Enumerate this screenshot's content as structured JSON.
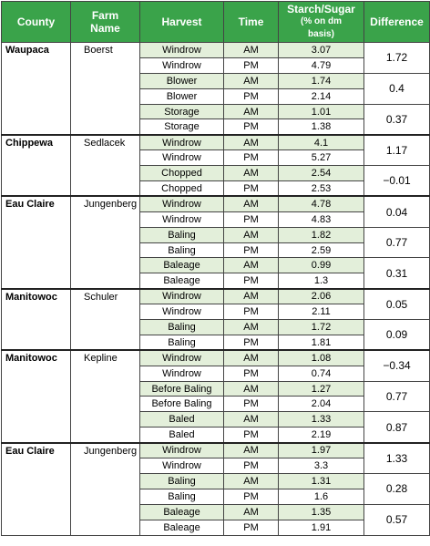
{
  "headers": {
    "county": "County",
    "farm_line1": "Farm",
    "farm_line2": "Name",
    "harvest": "Harvest",
    "time": "Time",
    "sugar_line1": "Starch/Sugar",
    "sugar_line2": "(% on dm",
    "sugar_line3": "basis)",
    "difference": "Difference"
  },
  "groups": [
    {
      "county": "Waupaca",
      "farm": "Boerst",
      "rows": [
        {
          "harvest": "Windrow",
          "time": "AM",
          "value": "3.07"
        },
        {
          "harvest": "Windrow",
          "time": "PM",
          "value": "4.79"
        },
        {
          "harvest": "Blower",
          "time": "AM",
          "value": "1.74"
        },
        {
          "harvest": "Blower",
          "time": "PM",
          "value": "2.14"
        },
        {
          "harvest": "Storage",
          "time": "AM",
          "value": "1.01"
        },
        {
          "harvest": "Storage",
          "time": "PM",
          "value": "1.38"
        }
      ],
      "differences": [
        "1.72",
        "0.4",
        "0.37"
      ]
    },
    {
      "county": "Chippewa",
      "farm": "Sedlacek",
      "rows": [
        {
          "harvest": "Windrow",
          "time": "AM",
          "value": "4.1"
        },
        {
          "harvest": "Windrow",
          "time": "PM",
          "value": "5.27"
        },
        {
          "harvest": "Chopped",
          "time": "AM",
          "value": "2.54"
        },
        {
          "harvest": "Chopped",
          "time": "PM",
          "value": "2.53"
        }
      ],
      "differences": [
        "1.17",
        "−0.01"
      ]
    },
    {
      "county": "Eau Claire",
      "farm": "Jungenberg",
      "rows": [
        {
          "harvest": "Windrow",
          "time": "AM",
          "value": "4.78"
        },
        {
          "harvest": "Windrow",
          "time": "PM",
          "value": "4.83"
        },
        {
          "harvest": "Baling",
          "time": "AM",
          "value": "1.82"
        },
        {
          "harvest": "Baling",
          "time": "PM",
          "value": "2.59"
        },
        {
          "harvest": "Baleage",
          "time": "AM",
          "value": "0.99"
        },
        {
          "harvest": "Baleage",
          "time": "PM",
          "value": "1.3"
        }
      ],
      "differences": [
        "0.04",
        "0.77",
        "0.31"
      ]
    },
    {
      "county": "Manitowoc",
      "farm": "Schuler",
      "rows": [
        {
          "harvest": "Windrow",
          "time": "AM",
          "value": "2.06"
        },
        {
          "harvest": "Windrow",
          "time": "PM",
          "value": "2.11"
        },
        {
          "harvest": "Baling",
          "time": "AM",
          "value": "1.72"
        },
        {
          "harvest": "Baling",
          "time": "PM",
          "value": "1.81"
        }
      ],
      "differences": [
        "0.05",
        "0.09"
      ]
    },
    {
      "county": "Manitowoc",
      "farm": "Kepline",
      "rows": [
        {
          "harvest": "Windrow",
          "time": "AM",
          "value": "1.08"
        },
        {
          "harvest": "Windrow",
          "time": "PM",
          "value": "0.74"
        },
        {
          "harvest": "Before Baling",
          "time": "AM",
          "value": "1.27"
        },
        {
          "harvest": "Before Baling",
          "time": "PM",
          "value": "2.04"
        },
        {
          "harvest": "Baled",
          "time": "AM",
          "value": "1.33"
        },
        {
          "harvest": "Baled",
          "time": "PM",
          "value": "2.19"
        }
      ],
      "differences": [
        "−0.34",
        "0.77",
        "0.87"
      ]
    },
    {
      "county": "Eau Claire",
      "farm": "Jungenberg",
      "rows": [
        {
          "harvest": "Windrow",
          "time": "AM",
          "value": "1.97"
        },
        {
          "harvest": "Windrow",
          "time": "PM",
          "value": "3.3"
        },
        {
          "harvest": "Baling",
          "time": "AM",
          "value": "1.31"
        },
        {
          "harvest": "Baling",
          "time": "PM",
          "value": "1.6"
        },
        {
          "harvest": "Baleage",
          "time": "AM",
          "value": "1.35"
        },
        {
          "harvest": "Baleage",
          "time": "PM",
          "value": "1.91"
        }
      ],
      "differences": [
        "1.33",
        "0.28",
        "0.57"
      ]
    }
  ]
}
